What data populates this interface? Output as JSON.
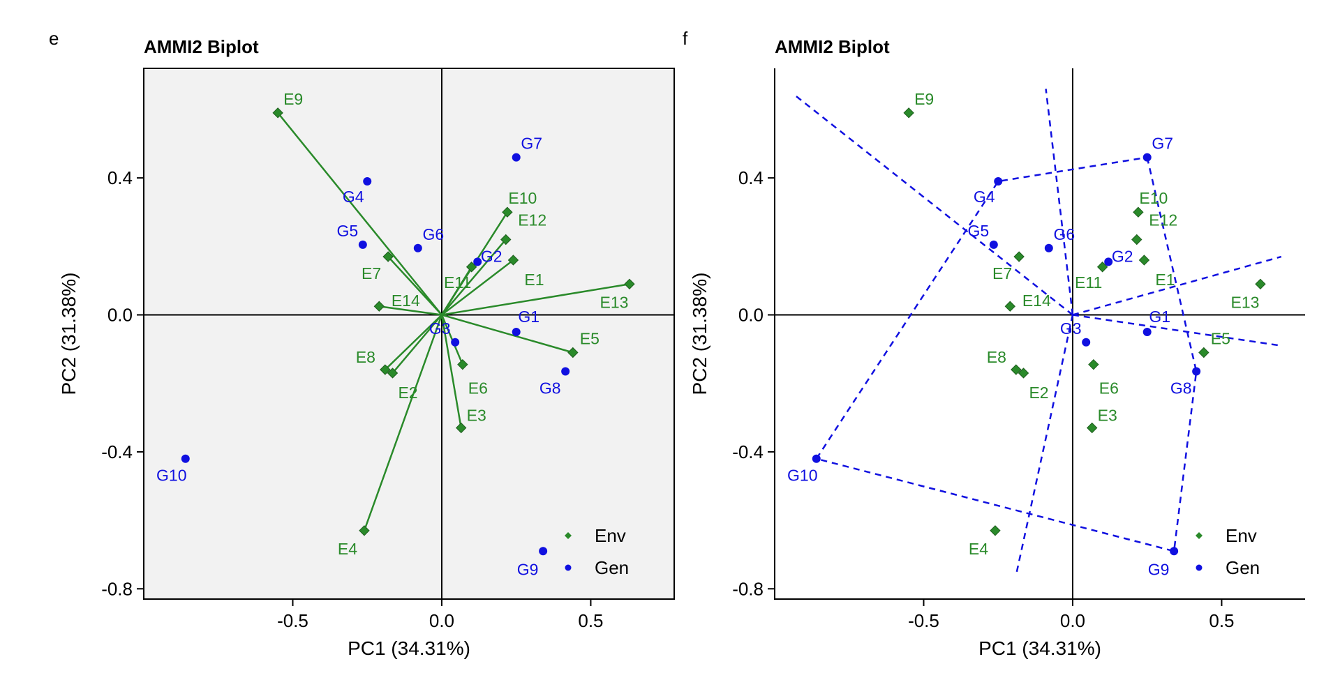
{
  "colors": {
    "env": "#2a8a2a",
    "gen": "#1010e0",
    "axis": "#000000",
    "panel_bg": "#f2f2f2",
    "hull": "#1010e0"
  },
  "chart_data": [
    {
      "type": "scatter",
      "panel_label": "e",
      "title": "AMMI2 Biplot",
      "xlabel": "PC1 (34.31%)",
      "ylabel": "PC2 (31.38%)",
      "xlim": [
        -1.0,
        0.78
      ],
      "ylim": [
        -0.83,
        0.72
      ],
      "xticks": [
        -0.5,
        0.0,
        0.5
      ],
      "xtick_labels": [
        "-0.5",
        "0.0",
        "0.5"
      ],
      "yticks": [
        -0.8,
        -0.4,
        0.0,
        0.4
      ],
      "ytick_labels": [
        "-0.8",
        "-0.4",
        "0.0",
        "0.4"
      ],
      "background": "shaded",
      "vectors": true,
      "legend": {
        "position": "bottom-right",
        "entries": [
          {
            "label": "Env",
            "series": "env"
          },
          {
            "label": "Gen",
            "series": "gen"
          }
        ]
      },
      "series": [
        {
          "name": "Env",
          "key": "env",
          "marker": "diamond",
          "points": [
            {
              "label": "E1",
              "x": 0.24,
              "y": 0.16
            },
            {
              "label": "E2",
              "x": -0.165,
              "y": -0.17
            },
            {
              "label": "E3",
              "x": 0.065,
              "y": -0.33
            },
            {
              "label": "E4",
              "x": -0.26,
              "y": -0.63
            },
            {
              "label": "E5",
              "x": 0.44,
              "y": -0.11
            },
            {
              "label": "E6",
              "x": 0.07,
              "y": -0.145
            },
            {
              "label": "E7",
              "x": -0.18,
              "y": 0.17
            },
            {
              "label": "E8",
              "x": -0.19,
              "y": -0.16
            },
            {
              "label": "E9",
              "x": -0.55,
              "y": 0.59
            },
            {
              "label": "E10",
              "x": 0.22,
              "y": 0.3
            },
            {
              "label": "E11",
              "x": 0.1,
              "y": 0.14
            },
            {
              "label": "E12",
              "x": 0.215,
              "y": 0.22
            },
            {
              "label": "E13",
              "x": 0.63,
              "y": 0.09
            },
            {
              "label": "E14",
              "x": -0.21,
              "y": 0.025
            }
          ]
        },
        {
          "name": "Gen",
          "key": "gen",
          "marker": "circle",
          "points": [
            {
              "label": "G1",
              "x": 0.25,
              "y": -0.05
            },
            {
              "label": "G2",
              "x": 0.12,
              "y": 0.155
            },
            {
              "label": "G3",
              "x": 0.045,
              "y": -0.08
            },
            {
              "label": "G4",
              "x": -0.25,
              "y": 0.39
            },
            {
              "label": "G5",
              "x": -0.265,
              "y": 0.205
            },
            {
              "label": "G6",
              "x": -0.08,
              "y": 0.195
            },
            {
              "label": "G7",
              "x": 0.25,
              "y": 0.46
            },
            {
              "label": "G8",
              "x": 0.415,
              "y": -0.165
            },
            {
              "label": "G9",
              "x": 0.34,
              "y": -0.69
            },
            {
              "label": "G10",
              "x": -0.86,
              "y": -0.42
            }
          ]
        }
      ]
    },
    {
      "type": "scatter",
      "panel_label": "f",
      "title": "AMMI2 Biplot",
      "xlabel": "PC1 (34.31%)",
      "ylabel": "PC2 (31.38%)",
      "xlim": [
        -1.0,
        0.78
      ],
      "ylim": [
        -0.83,
        0.72
      ],
      "xticks": [
        -0.5,
        0.0,
        0.5
      ],
      "xtick_labels": [
        "-0.5",
        "0.0",
        "0.5"
      ],
      "yticks": [
        -0.8,
        -0.4,
        0.0,
        0.4
      ],
      "ytick_labels": [
        "-0.8",
        "-0.4",
        "0.0",
        "0.4"
      ],
      "background": "plain",
      "vectors": false,
      "polygon_vertices": [
        "G7",
        "G8",
        "G9",
        "G10",
        "G4"
      ],
      "sector_rays": [
        {
          "x": -0.93,
          "y": 0.64
        },
        {
          "x": -0.09,
          "y": 0.66
        },
        {
          "x": 0.7,
          "y": 0.17
        },
        {
          "x": 0.7,
          "y": -0.09
        },
        {
          "x": -0.19,
          "y": -0.76
        }
      ],
      "legend": {
        "position": "bottom-right",
        "entries": [
          {
            "label": "Env",
            "series": "env"
          },
          {
            "label": "Gen",
            "series": "gen"
          }
        ]
      },
      "series": [
        {
          "name": "Env",
          "key": "env",
          "marker": "diamond",
          "points": [
            {
              "label": "E1",
              "x": 0.24,
              "y": 0.16
            },
            {
              "label": "E2",
              "x": -0.165,
              "y": -0.17
            },
            {
              "label": "E3",
              "x": 0.065,
              "y": -0.33
            },
            {
              "label": "E4",
              "x": -0.26,
              "y": -0.63
            },
            {
              "label": "E5",
              "x": 0.44,
              "y": -0.11
            },
            {
              "label": "E6",
              "x": 0.07,
              "y": -0.145
            },
            {
              "label": "E7",
              "x": -0.18,
              "y": 0.17
            },
            {
              "label": "E8",
              "x": -0.19,
              "y": -0.16
            },
            {
              "label": "E9",
              "x": -0.55,
              "y": 0.59
            },
            {
              "label": "E10",
              "x": 0.22,
              "y": 0.3
            },
            {
              "label": "E11",
              "x": 0.1,
              "y": 0.14
            },
            {
              "label": "E12",
              "x": 0.215,
              "y": 0.22
            },
            {
              "label": "E13",
              "x": 0.63,
              "y": 0.09
            },
            {
              "label": "E14",
              "x": -0.21,
              "y": 0.025
            }
          ]
        },
        {
          "name": "Gen",
          "key": "gen",
          "marker": "circle",
          "points": [
            {
              "label": "G1",
              "x": 0.25,
              "y": -0.05
            },
            {
              "label": "G2",
              "x": 0.12,
              "y": 0.155
            },
            {
              "label": "G3",
              "x": 0.045,
              "y": -0.08
            },
            {
              "label": "G4",
              "x": -0.25,
              "y": 0.39
            },
            {
              "label": "G5",
              "x": -0.265,
              "y": 0.205
            },
            {
              "label": "G6",
              "x": -0.08,
              "y": 0.195
            },
            {
              "label": "G7",
              "x": 0.25,
              "y": 0.46
            },
            {
              "label": "G8",
              "x": 0.415,
              "y": -0.165
            },
            {
              "label": "G9",
              "x": 0.34,
              "y": -0.69
            },
            {
              "label": "G10",
              "x": -0.86,
              "y": -0.42
            }
          ]
        }
      ]
    }
  ]
}
